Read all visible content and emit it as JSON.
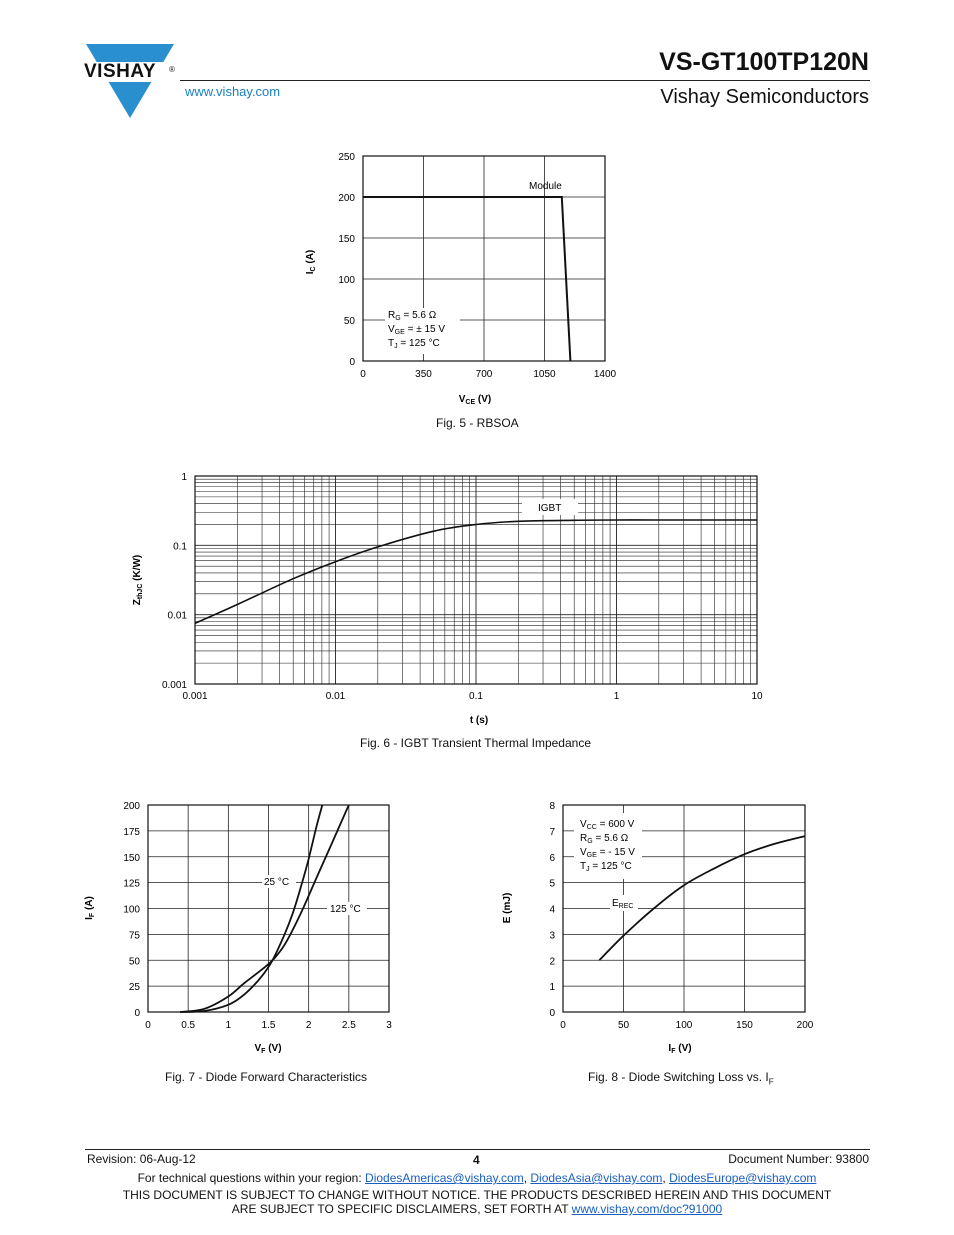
{
  "header": {
    "brand": "VISHAY",
    "brand_reg": "®",
    "website": "www.vishay.com",
    "part_number": "VS-GT100TP120N",
    "company": "Vishay Semiconductors",
    "brand_color": "#2a8fcf"
  },
  "figures": {
    "fig5": {
      "caption": "Fig. 5 - RBSOA",
      "chart_data": {
        "type": "line",
        "xlabel": "V",
        "xlabel_sub": "CE",
        "xlabel_unit": " (V)",
        "ylabel": "I",
        "ylabel_sub": "C",
        "ylabel_unit": " (A)",
        "xlim": [
          0,
          1400
        ],
        "ylim": [
          0,
          250
        ],
        "x_ticks": [
          "0",
          "350",
          "700",
          "1050",
          "1400"
        ],
        "y_ticks": [
          "0",
          "50",
          "100",
          "150",
          "200",
          "250"
        ],
        "series": [
          {
            "name": "Module",
            "x": [
              0,
              1150,
              1200
            ],
            "y": [
              200,
              200,
              0
            ]
          }
        ],
        "annotations": {
          "rg": "R",
          "rg_sub": "G",
          "rg_val": " = 5.6 Ω",
          "vge": "V",
          "vge_sub": "GE",
          "vge_val": " = ± 15 V",
          "tj": "T",
          "tj_sub": "J",
          "tj_val": " = 125 °C"
        }
      }
    },
    "fig6": {
      "caption": "Fig. 6 - IGBT Transient Thermal Impedance",
      "chart_data": {
        "type": "line",
        "scale": "log-log",
        "xlabel": "t (s)",
        "ylabel": "Z",
        "ylabel_sub": "thJC",
        "ylabel_unit": " (K/W)",
        "xlim": [
          0.001,
          10
        ],
        "ylim": [
          0.001,
          1
        ],
        "x_ticks": [
          "0.001",
          "0.01",
          "0.1",
          "1",
          "10"
        ],
        "y_ticks": [
          "0.001",
          "0.01",
          "0.1",
          "1"
        ],
        "series": [
          {
            "name": "IGBT",
            "x": [
              0.001,
              0.002,
              0.005,
              0.01,
              0.02,
              0.05,
              0.1,
              0.2,
              0.5,
              1,
              2,
              5,
              10
            ],
            "y": [
              0.0075,
              0.014,
              0.033,
              0.058,
              0.095,
              0.16,
              0.2,
              0.222,
              0.23,
              0.232,
              0.232,
              0.232,
              0.232
            ]
          }
        ]
      }
    },
    "fig7": {
      "caption": "Fig. 7 - Diode Forward Characteristics",
      "chart_data": {
        "type": "line",
        "xlabel": "V",
        "xlabel_sub": "F",
        "xlabel_unit": " (V)",
        "ylabel": "I",
        "ylabel_sub": "F",
        "ylabel_unit": " (A)",
        "xlim": [
          0,
          3
        ],
        "ylim": [
          0,
          200
        ],
        "x_ticks": [
          "0",
          "0.5",
          "1",
          "1.5",
          "2",
          "2.5",
          "3"
        ],
        "y_ticks": [
          "0",
          "25",
          "50",
          "75",
          "100",
          "125",
          "150",
          "175",
          "200"
        ],
        "series": [
          {
            "name": "25 °C",
            "x": [
              0.4,
              0.7,
              1.0,
              1.2,
              1.4,
              1.55,
              1.7,
              1.8,
              1.9,
              2.0,
              2.1,
              2.17
            ],
            "y": [
              0,
              1,
              7,
              17,
              33,
              50,
              75,
              95,
              120,
              148,
              180,
              200
            ]
          },
          {
            "name": "125 °C",
            "x": [
              0.4,
              0.7,
              1.0,
              1.2,
              1.4,
              1.55,
              1.7,
              1.9,
              2.1,
              2.3,
              2.5
            ],
            "y": [
              0,
              3,
              15,
              28,
              40,
              50,
              65,
              95,
              130,
              165,
              200
            ]
          }
        ]
      }
    },
    "fig8": {
      "caption_prefix": "Fig. 8 - Diode Switching Loss vs. I",
      "caption_sub": "F",
      "chart_data": {
        "type": "line",
        "xlabel": "I",
        "xlabel_sub": "F",
        "xlabel_unit": " (V)",
        "ylabel": "E (mJ)",
        "xlim": [
          0,
          200
        ],
        "ylim": [
          0,
          8
        ],
        "x_ticks": [
          "0",
          "50",
          "100",
          "150",
          "200"
        ],
        "y_ticks": [
          "0",
          "1",
          "2",
          "3",
          "4",
          "5",
          "6",
          "7",
          "8"
        ],
        "series": [
          {
            "name": "E",
            "name_sub": "REC",
            "x": [
              30,
              50,
              75,
              100,
              125,
              150,
              175,
              200
            ],
            "y": [
              2.0,
              2.95,
              4.0,
              4.9,
              5.55,
              6.1,
              6.5,
              6.8
            ]
          }
        ],
        "annotations": {
          "vcc": "V",
          "vcc_sub": "CC",
          "vcc_val": " = 600 V",
          "rg": "R",
          "rg_sub": "G",
          "rg_val": " = 5.6 Ω",
          "vge": "V",
          "vge_sub": "GE",
          "vge_val": " = - 15 V",
          "tj": "T",
          "tj_sub": "J",
          "tj_val": " = 125 °C"
        }
      }
    }
  },
  "footer": {
    "revision": "Revision: 06-Aug-12",
    "page": "4",
    "doc_number": "Document Number: 93800",
    "questions_prefix": "For technical questions within your region: ",
    "email_americas": "DiodesAmericas@vishay.com",
    "email_asia": "DiodesAsia@vishay.com",
    "email_europe": "DiodesEurope@vishay.com",
    "comma": ", ",
    "disclaimer_line1": "THIS DOCUMENT IS SUBJECT TO CHANGE WITHOUT NOTICE. THE PRODUCTS DESCRIBED HEREIN AND THIS DOCUMENT",
    "disclaimer_line2_prefix": "ARE SUBJECT TO SPECIFIC DISCLAIMERS, SET FORTH AT ",
    "disclaimer_link": "www.vishay.com/doc?91000"
  }
}
